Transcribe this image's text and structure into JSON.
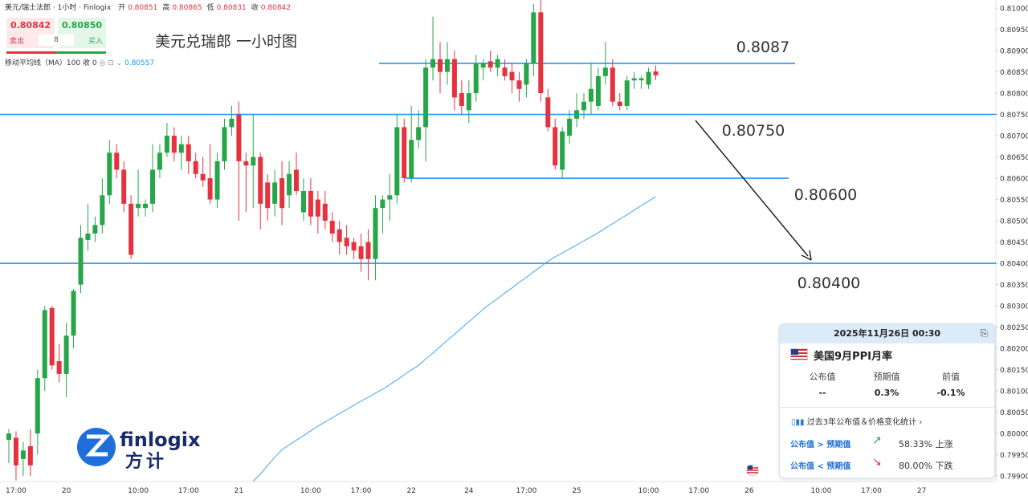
{
  "header": {
    "symbol": "美元/瑞士法郎 · 1小时 · Finlogix",
    "ohlc": [
      {
        "label": "开",
        "value": "0.80851"
      },
      {
        "label": "高",
        "value": "0.80865"
      },
      {
        "label": "低",
        "value": "0.80831"
      },
      {
        "label": "收",
        "value": "0.80842"
      }
    ]
  },
  "trade": {
    "sell_price": "0.80842",
    "sell_label": "卖出",
    "quantity": "8",
    "buy_price": "0.80850",
    "buy_label": "买入"
  },
  "indicator": {
    "name": "移动平均线（MA）100 收 0",
    "value": "0.80557"
  },
  "logo": {
    "name": "finlogix",
    "name_cn": "方计"
  },
  "event_card": {
    "datetime": "2025年11月26日 00:30",
    "event": "美国9月PPI月率",
    "columns": [
      "公布值",
      "预期值",
      "前值"
    ],
    "values": [
      "--",
      "0.3%",
      "-0.1%"
    ],
    "stats_link": "过去3年公布值＆价格变化统计",
    "rows": [
      {
        "condition": "公布值 > 预期值",
        "result": "58.33% 上涨"
      },
      {
        "condition": "公布值 < 预期值",
        "result": "80.00% 下跌"
      }
    ]
  },
  "chart_data": {
    "type": "candlestick",
    "title": "美元兑瑞郎 一小时图",
    "categories": [
      null,
      "17:00",
      null,
      null,
      null,
      null,
      null,
      null,
      "20",
      null,
      null,
      null,
      null,
      null,
      null,
      null,
      null,
      null,
      "10:00",
      null,
      null,
      null,
      null,
      null,
      null,
      "17:00",
      null,
      null,
      null,
      null,
      null,
      null,
      "21",
      null,
      null,
      null,
      null,
      null,
      null,
      null,
      null,
      null,
      "10:00",
      null,
      null,
      null,
      null,
      null,
      null,
      "17:00",
      null,
      null,
      null,
      null,
      null,
      null,
      "22",
      null,
      null,
      null,
      null,
      null,
      null,
      null,
      "24",
      null,
      null,
      null,
      null,
      null,
      null,
      null,
      "17:00",
      null,
      null,
      null,
      null,
      null,
      null,
      "25",
      null,
      null,
      null,
      null,
      null,
      null,
      null,
      null,
      null,
      "10:00",
      null,
      null,
      null,
      null,
      null,
      null,
      "17:00",
      null,
      null,
      null,
      null,
      null,
      null,
      "26",
      null,
      null,
      null,
      null,
      null,
      null,
      null,
      null,
      null,
      "10:00",
      null,
      null,
      null,
      null,
      null,
      null,
      "17:00",
      null,
      null,
      null,
      null,
      null,
      null,
      "27",
      null,
      null,
      null,
      null,
      null,
      null,
      null,
      null,
      null
    ],
    "open": [
      0.79985,
      0.7999,
      0.7994,
      0.7997,
      0.8,
      0.8013,
      0.80295,
      0.8017,
      0.8014,
      0.8023,
      0.8035,
      0.80455,
      0.8047,
      0.8049,
      0.8056,
      0.8066,
      0.8062,
      0.8054,
      0.8053,
      0.8053,
      0.8054,
      0.8062,
      0.8066,
      0.807,
      0.8066,
      0.8068,
      0.8064,
      0.8061,
      0.806,
      0.8055,
      0.8064,
      0.8072,
      0.8075,
      0.8064,
      0.8063,
      0.8065,
      0.8059,
      0.8054,
      0.806,
      0.8056,
      0.8062,
      0.8052,
      0.8057,
      0.8055,
      0.8054,
      0.805,
      0.8048,
      0.8046,
      0.8045,
      0.8044,
      0.8045,
      0.8041,
      0.8053,
      0.8055,
      0.8056,
      0.8072,
      0.806,
      0.8069,
      0.8072,
      0.8086,
      0.8088,
      0.8085,
      0.8088,
      0.808,
      0.8076,
      0.808,
      0.8086,
      0.80875,
      0.8086,
      0.8086,
      0.8085,
      0.8083,
      0.8082,
      0.8087,
      0.8099,
      0.8079,
      0.8072,
      0.8062,
      0.807,
      0.8074,
      0.8076,
      0.8078,
      0.8077,
      0.8084,
      0.8086,
      0.8078,
      0.8077,
      0.8083,
      0.8083,
      0.8082,
      0.80851,
      null,
      null,
      null,
      null,
      null,
      null,
      null,
      null,
      null,
      null,
      null,
      null,
      null,
      null,
      null,
      null,
      null,
      null,
      null,
      null,
      null,
      null,
      null,
      null,
      null,
      null,
      null,
      null,
      null,
      null,
      null,
      null,
      null,
      null,
      null,
      null,
      null,
      null,
      null,
      null,
      null,
      null,
      null,
      null,
      null,
      null
    ],
    "high": [
      0.8001,
      0.80005,
      0.7998,
      0.8001,
      0.8015,
      0.803,
      0.803,
      0.8021,
      0.8026,
      0.8034,
      0.8049,
      0.8054,
      0.8051,
      0.806,
      0.8069,
      0.8068,
      0.8064,
      0.8056,
      0.8062,
      0.8055,
      0.8068,
      0.8068,
      0.8073,
      0.8072,
      0.807,
      0.807,
      0.8066,
      0.8065,
      0.8068,
      0.8066,
      0.8074,
      0.8077,
      0.8078,
      0.8066,
      0.8075,
      0.8066,
      0.8061,
      0.8062,
      0.8064,
      0.8064,
      0.8066,
      0.806,
      0.806,
      0.8057,
      0.8057,
      0.8052,
      0.805,
      0.8049,
      0.8046,
      0.8047,
      0.8048,
      0.8056,
      0.8056,
      0.8061,
      0.8075,
      0.8074,
      0.8077,
      0.8076,
      0.8088,
      0.8098,
      0.8092,
      0.8092,
      0.809,
      0.8083,
      0.8083,
      0.8089,
      0.8088,
      0.809,
      0.8089,
      0.8088,
      0.8087,
      0.8085,
      0.8088,
      0.8101,
      0.8102,
      0.8081,
      0.8074,
      0.8072,
      0.8076,
      0.808,
      0.808,
      0.8087,
      0.8086,
      0.8092,
      0.8088,
      0.808,
      0.8084,
      0.8085,
      0.8084,
      0.8086,
      0.80865,
      null,
      null,
      null,
      null,
      null,
      null,
      null,
      null,
      null,
      null,
      null,
      null,
      null,
      null,
      null,
      null,
      null,
      null,
      null,
      null,
      null,
      null,
      null,
      null,
      null,
      null,
      null,
      null,
      null,
      null,
      null,
      null,
      null,
      null,
      null,
      null,
      null,
      null,
      null,
      null,
      null,
      null,
      null,
      null,
      null,
      null
    ],
    "low": [
      0.7993,
      0.7989,
      0.799,
      0.799,
      0.7995,
      0.801,
      0.8015,
      0.8012,
      0.80085,
      0.802,
      0.8033,
      0.8043,
      0.8045,
      0.8047,
      0.8054,
      0.806,
      0.8052,
      0.8041,
      0.8051,
      0.8051,
      0.8052,
      0.806,
      0.8065,
      0.8064,
      0.8062,
      0.8061,
      0.806,
      0.8058,
      0.8054,
      0.8053,
      0.8062,
      0.807,
      0.805,
      0.8052,
      0.8053,
      0.8048,
      0.805,
      0.8051,
      0.8049,
      0.8053,
      0.8056,
      0.805,
      0.8049,
      0.8047,
      0.8048,
      0.8045,
      0.8042,
      0.8042,
      0.8041,
      0.8038,
      0.8036,
      0.8036,
      0.8047,
      0.805,
      0.8054,
      0.8059,
      0.8059,
      0.8067,
      0.8064,
      0.8083,
      0.808,
      0.8082,
      0.8076,
      0.8075,
      0.8073,
      0.8078,
      0.8083,
      0.8085,
      0.8084,
      0.8083,
      0.808,
      0.8078,
      0.8079,
      0.8084,
      0.8078,
      0.8071,
      0.8062,
      0.806,
      0.8068,
      0.8072,
      0.8074,
      0.8075,
      0.8076,
      0.8082,
      0.8077,
      0.8076,
      0.8076,
      0.8081,
      0.8081,
      0.8081,
      0.80831,
      null,
      null,
      null,
      null,
      null,
      null,
      null,
      null,
      null,
      null,
      null,
      null,
      null,
      null,
      null,
      null,
      null,
      null,
      null,
      null,
      null,
      null,
      null,
      null,
      null,
      null,
      null,
      null,
      null,
      null,
      null,
      null,
      null,
      null,
      null,
      null,
      null,
      null,
      null,
      null,
      null,
      null,
      null,
      null,
      null,
      null
    ],
    "close": [
      0.8,
      0.79925,
      0.7996,
      0.79925,
      0.8013,
      0.8029,
      0.8016,
      0.8014,
      0.8023,
      0.80335,
      0.8046,
      0.8047,
      0.8049,
      0.8056,
      0.8066,
      0.8062,
      0.8054,
      0.8042,
      0.8054,
      0.8054,
      0.8062,
      0.8066,
      0.807,
      0.8066,
      0.8068,
      0.8064,
      0.8061,
      0.80595,
      0.8055,
      0.8064,
      0.8072,
      0.8074,
      0.8064,
      0.8063,
      0.8065,
      0.8054,
      0.8053,
      0.8059,
      0.8053,
      0.8061,
      0.8057,
      0.8057,
      0.8051,
      0.8051,
      0.805,
      0.8047,
      0.8045,
      0.8044,
      0.8043,
      0.8041,
      0.8041,
      0.8053,
      0.8055,
      0.8056,
      0.8072,
      0.806,
      0.8069,
      0.8072,
      0.8086,
      0.8088,
      0.8085,
      0.8088,
      0.8079,
      0.8077,
      0.808,
      0.8087,
      0.8087,
      0.8086,
      0.8088,
      0.8084,
      0.8083,
      0.8081,
      0.8087,
      0.8099,
      0.808,
      0.8072,
      0.8063,
      0.8071,
      0.8074,
      0.8076,
      0.8078,
      0.8081,
      0.8084,
      0.8086,
      0.8078,
      0.8077,
      0.8083,
      0.80835,
      0.80835,
      0.8085,
      0.80842,
      null,
      null,
      null,
      null,
      null,
      null,
      null,
      null,
      null,
      null,
      null,
      null,
      null,
      null,
      null,
      null,
      null,
      null,
      null,
      null,
      null,
      null,
      null,
      null,
      null,
      null,
      null,
      null,
      null,
      null,
      null,
      null,
      null,
      null,
      null,
      null,
      null,
      null,
      null,
      null,
      null,
      null,
      null,
      null,
      null,
      null
    ],
    "up_color": "#26a648",
    "down_color": "#e5323f",
    "ma": {
      "color": "#42a5f5",
      "values": [
        null,
        null,
        null,
        null,
        null,
        null,
        null,
        null,
        null,
        null,
        null,
        null,
        null,
        null,
        null,
        null,
        null,
        null,
        null,
        null,
        null,
        null,
        null,
        null,
        null,
        null,
        null,
        null,
        null,
        null,
        null,
        null,
        null,
        null,
        0.79888,
        0.79905,
        0.79925,
        0.79944,
        0.79962,
        0.79973,
        0.79984,
        0.79995,
        0.80006,
        0.80017,
        0.80027,
        0.80037,
        0.80047,
        0.80056,
        0.80066,
        0.80076,
        0.80085,
        0.80095,
        0.80104,
        0.80115,
        0.80126,
        0.80138,
        0.80149,
        0.8016,
        0.80175,
        0.80189,
        0.80204,
        0.80219,
        0.80233,
        0.80248,
        0.80263,
        0.80277,
        0.80292,
        0.80305,
        0.80317,
        0.8033,
        0.80342,
        0.80355,
        0.80367,
        0.8038,
        0.80392,
        0.80405,
        0.80415,
        0.80424,
        0.80434,
        0.80443,
        0.80453,
        0.80462,
        0.80472,
        0.80483,
        0.80493,
        0.80504,
        0.80514,
        0.80525,
        0.80536,
        0.80546,
        0.80557,
        null,
        null,
        null,
        null,
        null,
        null,
        null,
        null,
        null,
        null,
        null,
        null,
        null,
        null,
        null,
        null,
        null,
        null,
        null,
        null,
        null,
        null,
        null,
        null,
        null,
        null,
        null,
        null,
        null,
        null,
        null,
        null,
        null,
        null,
        null,
        null,
        null,
        null,
        null,
        null,
        null,
        null,
        null,
        null,
        null,
        null
      ]
    },
    "levels": [
      {
        "value": 0.8087,
        "label": "0.8087"
      },
      {
        "value": 0.8075,
        "label": "0.80750"
      },
      {
        "value": 0.806,
        "label": "0.80600"
      },
      {
        "value": 0.804,
        "label": "0.80400"
      }
    ],
    "level_color": "#2196f3",
    "ylim": [
      0.79887,
      0.81019
    ],
    "yticks": [
      {
        "value": 0.81,
        "label": "0.81000"
      },
      {
        "value": 0.8095,
        "label": "0.80950"
      },
      {
        "value": 0.809,
        "label": "0.80900"
      },
      {
        "value": 0.8085,
        "label": "0.80850"
      },
      {
        "value": 0.808,
        "label": "0.80800"
      },
      {
        "value": 0.8075,
        "label": "0.80750"
      },
      {
        "value": 0.807,
        "label": "0.80700"
      },
      {
        "value": 0.8065,
        "label": "0.80650"
      },
      {
        "value": 0.806,
        "label": "0.80600"
      },
      {
        "value": 0.8055,
        "label": "0.80550"
      },
      {
        "value": 0.805,
        "label": "0.80500"
      },
      {
        "value": 0.8045,
        "label": "0.80450"
      },
      {
        "value": 0.804,
        "label": "0.80400"
      },
      {
        "value": 0.8035,
        "label": "0.80350"
      },
      {
        "value": 0.803,
        "label": "0.80300"
      },
      {
        "value": 0.8025,
        "label": "0.80250"
      },
      {
        "value": 0.802,
        "label": "0.80200"
      },
      {
        "value": 0.8015,
        "label": "0.80150"
      },
      {
        "value": 0.801,
        "label": "0.80100"
      },
      {
        "value": 0.8005,
        "label": "0.80050"
      },
      {
        "value": 0.8,
        "label": "0.80000"
      },
      {
        "value": 0.7995,
        "label": "0.79950"
      },
      {
        "value": 0.799,
        "label": "0.79900"
      }
    ],
    "grid": false
  }
}
